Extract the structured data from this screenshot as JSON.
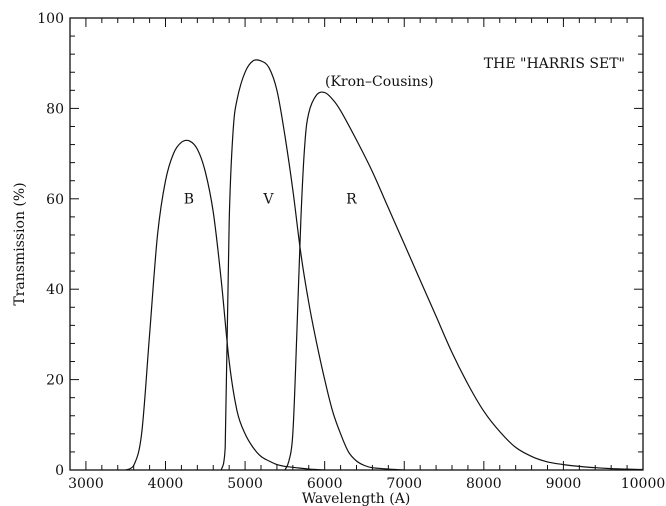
{
  "chart_data": {
    "type": "line",
    "title": "",
    "xlabel": "Wavelength (A)",
    "ylabel": "Transmission (%)",
    "xlim": [
      2800,
      10000
    ],
    "ylim": [
      0,
      100
    ],
    "xticks": [
      3000,
      4000,
      5000,
      6000,
      7000,
      8000,
      9000,
      10000
    ],
    "yticks": [
      0,
      20,
      40,
      60,
      80,
      100
    ],
    "xtick_labels": [
      "3000",
      "4000",
      "5000",
      "6000",
      "7000",
      "8000",
      "9000",
      "10000"
    ],
    "ytick_labels": [
      "0",
      "20",
      "40",
      "60",
      "80",
      "100"
    ],
    "grid": false,
    "annotations": {
      "set_name": "THE \"HARRIS SET\"",
      "system": "(Kron–Cousins)"
    },
    "series": [
      {
        "name": "B",
        "x": [
          3500,
          3600,
          3700,
          3800,
          3900,
          4000,
          4100,
          4200,
          4300,
          4400,
          4500,
          4600,
          4700,
          4800,
          4900,
          5000,
          5100,
          5200,
          5300,
          5400,
          5500,
          5600,
          5800,
          6000
        ],
        "y": [
          0,
          1,
          8,
          30,
          52,
          64,
          70,
          72.5,
          72.8,
          71,
          66,
          57,
          42,
          24,
          13,
          8,
          5,
          3,
          2,
          1.2,
          0.8,
          0.6,
          0.2,
          0
        ]
      },
      {
        "name": "V",
        "x": [
          4700,
          4750,
          4800,
          4850,
          4900,
          5000,
          5100,
          5200,
          5300,
          5400,
          5500,
          5600,
          5700,
          5800,
          5900,
          6000,
          6100,
          6200,
          6300,
          6400,
          6500,
          6600,
          6800,
          7000
        ],
        "y": [
          0,
          5,
          55,
          75,
          82,
          88,
          90.5,
          90.5,
          89,
          84,
          74,
          62,
          48,
          37,
          28,
          20,
          13,
          8,
          4,
          2,
          1,
          0.5,
          0.2,
          0
        ]
      },
      {
        "name": "R",
        "x": [
          5500,
          5550,
          5600,
          5650,
          5700,
          5750,
          5800,
          5900,
          6000,
          6100,
          6200,
          6400,
          6600,
          6800,
          7000,
          7200,
          7400,
          7600,
          7800,
          8000,
          8200,
          8400,
          8600,
          8800,
          9000,
          9200,
          9400,
          9600,
          9800,
          10000
        ],
        "y": [
          0,
          2,
          8,
          30,
          55,
          72,
          79,
          83,
          83.5,
          82,
          79.5,
          73,
          66,
          58,
          50,
          42,
          34,
          26,
          19,
          13,
          8.5,
          5,
          3,
          1.8,
          1.2,
          0.8,
          0.5,
          0.3,
          0.2,
          0.1
        ]
      }
    ]
  }
}
